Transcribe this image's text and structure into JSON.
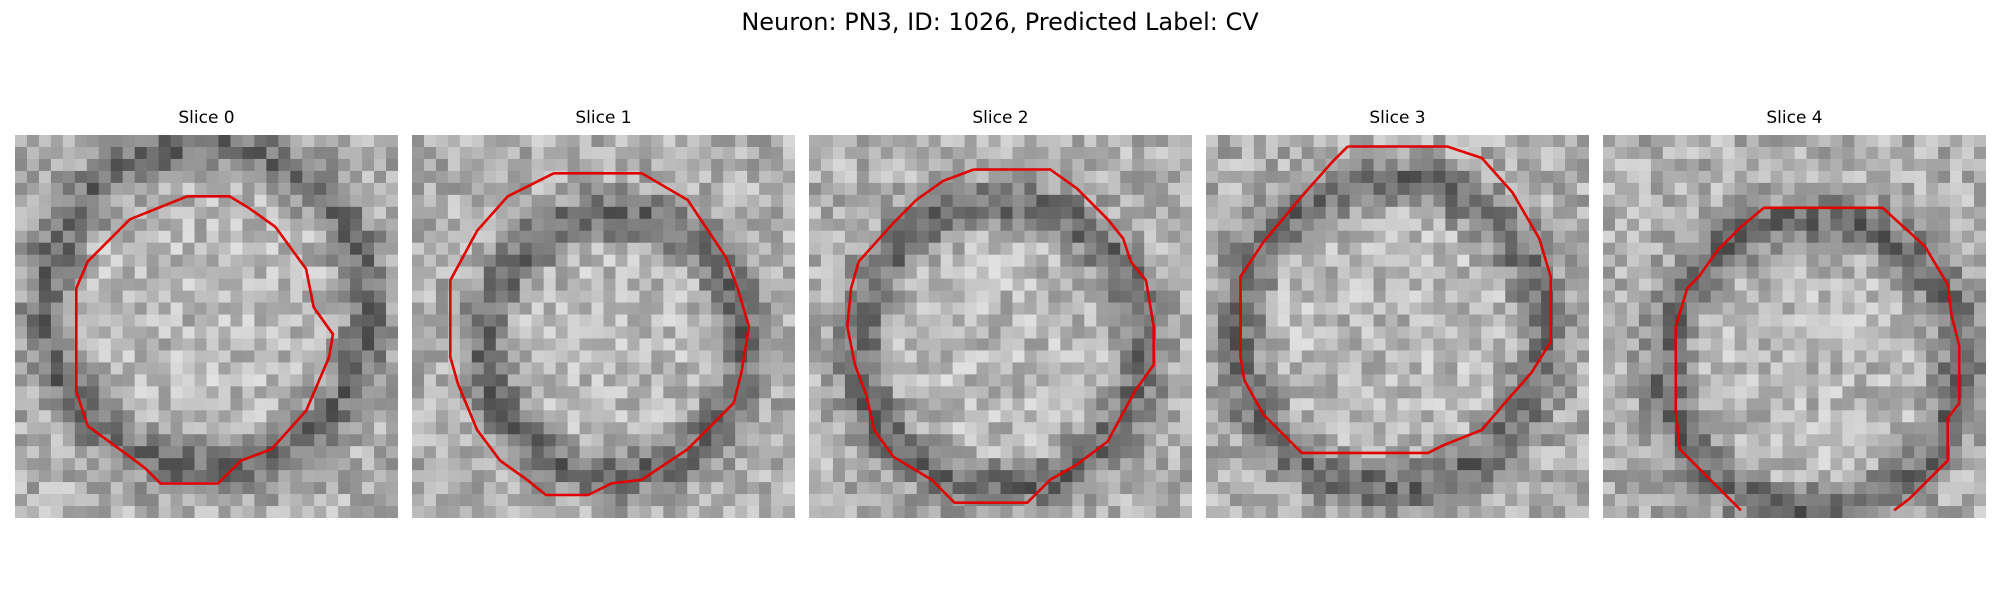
{
  "figure": {
    "title": "Neuron: PN3, ID: 1026, Predicted Label: CV"
  },
  "panels": [
    {
      "title": "Slice 0",
      "membrane": [
        0.5,
        0.45,
        0.68
      ],
      "outline": [
        [
          0.45,
          0.16
        ],
        [
          0.56,
          0.16
        ],
        [
          0.61,
          0.19
        ],
        [
          0.68,
          0.24
        ],
        [
          0.76,
          0.35
        ],
        [
          0.78,
          0.45
        ],
        [
          0.83,
          0.52
        ],
        [
          0.82,
          0.58
        ],
        [
          0.76,
          0.72
        ],
        [
          0.67,
          0.82
        ],
        [
          0.59,
          0.85
        ],
        [
          0.53,
          0.91
        ],
        [
          0.38,
          0.91
        ],
        [
          0.34,
          0.87
        ],
        [
          0.3,
          0.84
        ],
        [
          0.19,
          0.76
        ],
        [
          0.16,
          0.67
        ],
        [
          0.16,
          0.4
        ],
        [
          0.19,
          0.33
        ],
        [
          0.3,
          0.22
        ],
        [
          0.4,
          0.18
        ]
      ]
    },
    {
      "title": "Slice 1",
      "membrane": [
        0.53,
        0.55,
        0.55
      ],
      "outline": [
        [
          0.37,
          0.1
        ],
        [
          0.6,
          0.1
        ],
        [
          0.72,
          0.17
        ],
        [
          0.76,
          0.23
        ],
        [
          0.82,
          0.32
        ],
        [
          0.85,
          0.4
        ],
        [
          0.88,
          0.5
        ],
        [
          0.86,
          0.62
        ],
        [
          0.84,
          0.7
        ],
        [
          0.72,
          0.82
        ],
        [
          0.6,
          0.9
        ],
        [
          0.52,
          0.91
        ],
        [
          0.46,
          0.94
        ],
        [
          0.35,
          0.94
        ],
        [
          0.3,
          0.9
        ],
        [
          0.23,
          0.85
        ],
        [
          0.17,
          0.77
        ],
        [
          0.12,
          0.65
        ],
        [
          0.1,
          0.58
        ],
        [
          0.1,
          0.38
        ],
        [
          0.17,
          0.25
        ],
        [
          0.25,
          0.16
        ]
      ]
    },
    {
      "title": "Slice 2",
      "membrane": [
        0.5,
        0.55,
        0.6
      ],
      "outline": [
        [
          0.43,
          0.09
        ],
        [
          0.63,
          0.09
        ],
        [
          0.7,
          0.14
        ],
        [
          0.78,
          0.22
        ],
        [
          0.82,
          0.27
        ],
        [
          0.84,
          0.33
        ],
        [
          0.88,
          0.38
        ],
        [
          0.9,
          0.5
        ],
        [
          0.9,
          0.6
        ],
        [
          0.85,
          0.67
        ],
        [
          0.78,
          0.8
        ],
        [
          0.7,
          0.86
        ],
        [
          0.63,
          0.9
        ],
        [
          0.57,
          0.96
        ],
        [
          0.38,
          0.96
        ],
        [
          0.32,
          0.9
        ],
        [
          0.22,
          0.84
        ],
        [
          0.17,
          0.77
        ],
        [
          0.15,
          0.68
        ],
        [
          0.12,
          0.6
        ],
        [
          0.1,
          0.5
        ],
        [
          0.11,
          0.4
        ],
        [
          0.13,
          0.33
        ],
        [
          0.22,
          0.23
        ],
        [
          0.28,
          0.17
        ],
        [
          0.35,
          0.12
        ]
      ]
    },
    {
      "title": "Slice 3",
      "membrane": [
        0.48,
        0.52,
        0.65
      ],
      "outline": [
        [
          0.37,
          0.03
        ],
        [
          0.63,
          0.03
        ],
        [
          0.72,
          0.06
        ],
        [
          0.8,
          0.15
        ],
        [
          0.87,
          0.27
        ],
        [
          0.9,
          0.37
        ],
        [
          0.9,
          0.54
        ],
        [
          0.85,
          0.62
        ],
        [
          0.78,
          0.7
        ],
        [
          0.72,
          0.77
        ],
        [
          0.62,
          0.81
        ],
        [
          0.58,
          0.83
        ],
        [
          0.25,
          0.83
        ],
        [
          0.15,
          0.73
        ],
        [
          0.1,
          0.64
        ],
        [
          0.09,
          0.58
        ],
        [
          0.09,
          0.37
        ],
        [
          0.15,
          0.28
        ],
        [
          0.25,
          0.16
        ],
        [
          0.33,
          0.07
        ]
      ]
    },
    {
      "title": "Slice 4",
      "membrane": [
        0.55,
        0.6,
        0.62
      ],
      "outline": [
        [
          0.2,
          0.82
        ],
        [
          0.36,
          0.98
        ],
        [
          0.2,
          0.82
        ],
        [
          0.19,
          0.72
        ],
        [
          0.19,
          0.5
        ],
        [
          0.22,
          0.4
        ],
        [
          0.25,
          0.37
        ],
        [
          0.3,
          0.3
        ],
        [
          0.36,
          0.24
        ],
        [
          0.42,
          0.19
        ],
        [
          0.73,
          0.19
        ],
        [
          0.84,
          0.29
        ],
        [
          0.9,
          0.39
        ],
        [
          0.91,
          0.47
        ],
        [
          0.93,
          0.55
        ],
        [
          0.93,
          0.7
        ],
        [
          0.9,
          0.74
        ],
        [
          0.9,
          0.85
        ],
        [
          0.8,
          0.95
        ],
        [
          0.76,
          0.98
        ]
      ]
    }
  ]
}
